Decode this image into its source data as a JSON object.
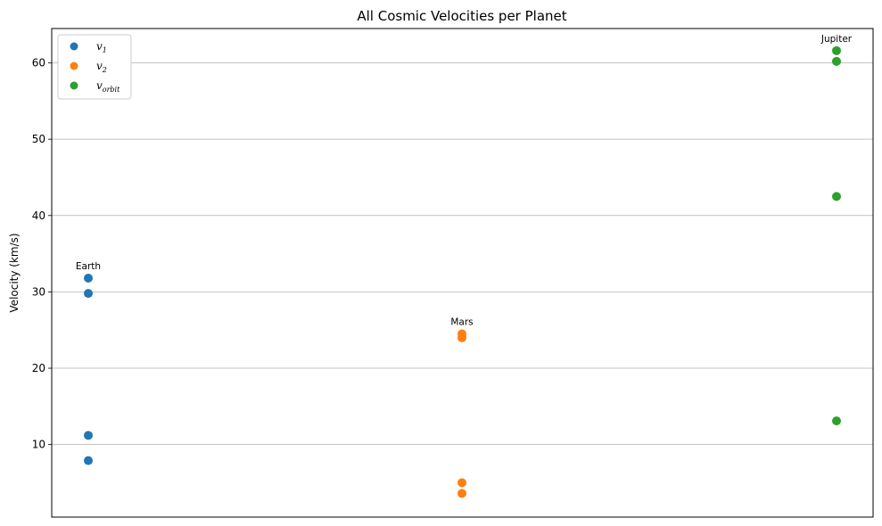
{
  "chart_data": {
    "type": "scatter",
    "title": "All Cosmic Velocities per Planet",
    "xlabel": "",
    "ylabel": "Velocity (km/s)",
    "x_categories": [
      "Earth",
      "Mars",
      "Jupiter"
    ],
    "ylim": [
      0.5,
      64.5
    ],
    "yticks": [
      10,
      20,
      30,
      40,
      50,
      60
    ],
    "grid": "y",
    "legend_position": "top-left",
    "series": [
      {
        "name": "v1",
        "legend_base": "v",
        "legend_sub": "1",
        "color": "#1f77b4",
        "x": [
          "Earth",
          "Earth",
          "Earth",
          "Earth"
        ],
        "y": [
          31.8,
          29.8,
          11.2,
          7.9
        ]
      },
      {
        "name": "v2",
        "legend_base": "v",
        "legend_sub": "2",
        "color": "#ff7f0e",
        "x": [
          "Mars",
          "Mars",
          "Mars",
          "Mars"
        ],
        "y": [
          24.5,
          24.0,
          5.0,
          3.6
        ]
      },
      {
        "name": "vorbit",
        "legend_base": "v",
        "legend_sub": "orbit",
        "color": "#2ca02c",
        "x": [
          "Jupiter",
          "Jupiter",
          "Jupiter",
          "Jupiter"
        ],
        "y": [
          61.6,
          60.2,
          42.5,
          13.1
        ]
      }
    ],
    "annotations": [
      {
        "text": "Earth",
        "x": "Earth",
        "y": 31.8
      },
      {
        "text": "Mars",
        "x": "Mars",
        "y": 24.5
      },
      {
        "text": "Jupiter",
        "x": "Jupiter",
        "y": 61.6
      }
    ]
  }
}
